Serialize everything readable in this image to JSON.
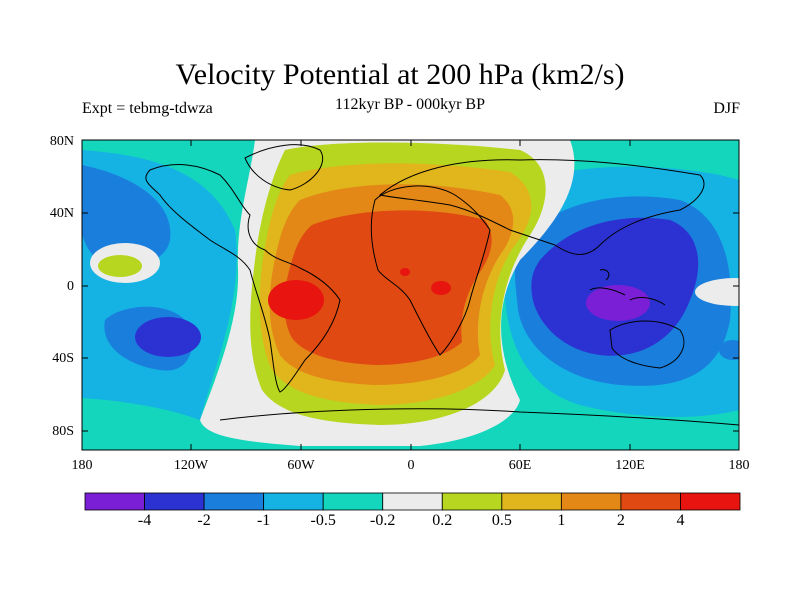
{
  "title": "Velocity Potential at 200 hPa (km2/s)",
  "subtitle": "112kyr BP - 000kyr BP",
  "left_string": "Expt = tebmg-tdwza",
  "right_string": "DJF",
  "lat_ticks": [
    "80N",
    "40N",
    "0",
    "40S",
    "80S"
  ],
  "lon_ticks": [
    "180",
    "120W",
    "60W",
    "0",
    "60E",
    "120E",
    "180"
  ],
  "colorbar": {
    "colors": [
      "#7a1fd6",
      "#2c32d2",
      "#1a7fdc",
      "#15b2e4",
      "#14d6bd",
      "#ececec",
      "#b7d61f",
      "#e1b51c",
      "#e38716",
      "#e04a12",
      "#e8140f"
    ],
    "labels": [
      "-4",
      "-2",
      "-1",
      "-0.5",
      "-0.2",
      "0.2",
      "0.5",
      "1",
      "2",
      "4"
    ]
  }
}
